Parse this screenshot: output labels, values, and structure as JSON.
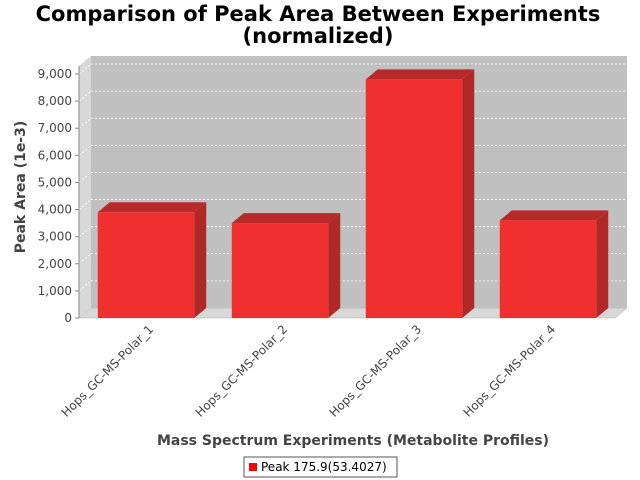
{
  "chart_data": {
    "type": "bar",
    "title_lines": [
      "Comparison of Peak Area Between Experiments",
      "(normalized)"
    ],
    "xlabel": "Mass Spectrum Experiments (Metabolite Profiles)",
    "ylabel": "Peak Area (1e-3)",
    "categories": [
      "Hops_GC-MS-Polar_1",
      "Hops_GC-MS-Polar_2",
      "Hops_GC-MS-Polar_3",
      "Hops_GC-MS-Polar_4"
    ],
    "series": [
      {
        "name": "Peak 175.9(53.4027)",
        "values": [
          3900,
          3500,
          8800,
          3600
        ]
      }
    ],
    "ylim": [
      0,
      9000
    ],
    "yticks": [
      {
        "value": 0,
        "label": "0"
      },
      {
        "value": 1000,
        "label": "1,000"
      },
      {
        "value": 2000,
        "label": "2,000"
      },
      {
        "value": 3000,
        "label": "3,000"
      },
      {
        "value": 4000,
        "label": "4,000"
      },
      {
        "value": 5000,
        "label": "5,000"
      },
      {
        "value": 6000,
        "label": "6,000"
      },
      {
        "value": 7000,
        "label": "7,000"
      },
      {
        "value": 8000,
        "label": "8,000"
      },
      {
        "value": 9000,
        "label": "9,000"
      }
    ],
    "grid": true,
    "legend_position": "bottom",
    "colors": {
      "bar_front": "#f0302f",
      "bar_top": "#b82a2a",
      "bar_side": "#b02828",
      "plot_back": "#c0c0c0",
      "plot_floor": "#d8d8d8",
      "legend_swatch": "#ff0000"
    }
  }
}
